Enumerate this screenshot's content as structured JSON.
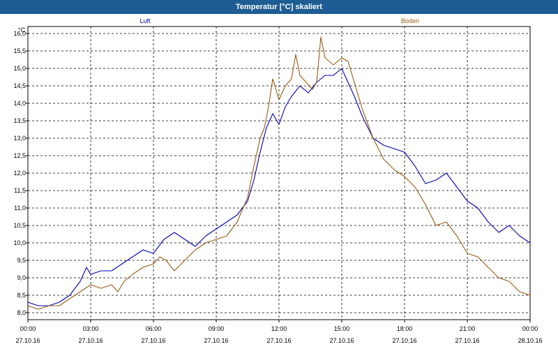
{
  "window": {
    "title": "Temperatur [°C] skaliert"
  },
  "colors": {
    "titlebar": "#1d5d93",
    "luft": "#0000b4",
    "boden": "#9a5a10",
    "grid": "#000000"
  },
  "chart_data": {
    "type": "line",
    "title": "Temperatur [°C] skaliert",
    "ylabel": "°C",
    "xlabel": "",
    "ylim": [
      7.8,
      16.2
    ],
    "xlim": [
      0,
      24
    ],
    "grid": true,
    "legend_placement": "top",
    "y_ticks": [
      "8,0",
      "8,5",
      "9,0",
      "9,5",
      "10,0",
      "10,5",
      "11,0",
      "11,5",
      "12,0",
      "12,5",
      "13,0",
      "13,5",
      "14,0",
      "14,5",
      "15,0",
      "15,5",
      "16,0"
    ],
    "y_tick_values": [
      8.0,
      8.5,
      9.0,
      9.5,
      10.0,
      10.5,
      11.0,
      11.5,
      12.0,
      12.5,
      13.0,
      13.5,
      14.0,
      14.5,
      15.0,
      15.5,
      16.0
    ],
    "x_ticks": [
      {
        "time": "00:00",
        "date": "27.10.16",
        "hour": 0
      },
      {
        "time": "03:00",
        "date": "27.10.16",
        "hour": 3
      },
      {
        "time": "06:00",
        "date": "27.10.16",
        "hour": 6
      },
      {
        "time": "09:00",
        "date": "27.10.16",
        "hour": 9
      },
      {
        "time": "12:00",
        "date": "27.10.16",
        "hour": 12
      },
      {
        "time": "15:00",
        "date": "27.10.16",
        "hour": 15
      },
      {
        "time": "18:00",
        "date": "27.10.16",
        "hour": 18
      },
      {
        "time": "21:00",
        "date": "27.10.16",
        "hour": 21
      },
      {
        "time": "00:00",
        "date": "28.10.16",
        "hour": 24
      }
    ],
    "series": [
      {
        "name": "Luft",
        "x": [
          0,
          0.5,
          1,
          1.5,
          2,
          2.5,
          2.8,
          3,
          3.5,
          4,
          4.5,
          5,
          5.5,
          6,
          6.5,
          7,
          7.5,
          8,
          8.5,
          9,
          9.5,
          10,
          10.5,
          10.8,
          11.1,
          11.4,
          11.7,
          12,
          12.3,
          12.6,
          13,
          13.4,
          13.8,
          14.2,
          14.6,
          15,
          15.3,
          15.6,
          16,
          16.5,
          17,
          17.5,
          18,
          18.5,
          19,
          19.5,
          20,
          20.5,
          21,
          21.5,
          22,
          22.5,
          23,
          23.5,
          24
        ],
        "values": [
          8.3,
          8.2,
          8.2,
          8.3,
          8.5,
          8.9,
          9.3,
          9.1,
          9.2,
          9.2,
          9.4,
          9.6,
          9.8,
          9.7,
          10.1,
          10.3,
          10.1,
          9.9,
          10.2,
          10.4,
          10.6,
          10.8,
          11.2,
          11.8,
          12.6,
          13.3,
          13.7,
          13.4,
          13.9,
          14.2,
          14.5,
          14.3,
          14.6,
          14.8,
          14.8,
          15.0,
          14.6,
          14.2,
          13.6,
          13.0,
          12.8,
          12.7,
          12.6,
          12.2,
          11.7,
          11.8,
          12.0,
          11.6,
          11.2,
          11.0,
          10.6,
          10.3,
          10.5,
          10.2,
          10.0
        ]
      },
      {
        "name": "Boden",
        "x": [
          0,
          0.5,
          1,
          1.5,
          2,
          2.5,
          3,
          3.5,
          4,
          4.3,
          4.6,
          5,
          5.5,
          6,
          6.3,
          6.6,
          7,
          7.5,
          8,
          8.5,
          9,
          9.5,
          10,
          10.5,
          10.8,
          11.1,
          11.3,
          11.5,
          11.7,
          12,
          12.3,
          12.6,
          12.8,
          13,
          13.3,
          13.6,
          13.8,
          14,
          14.2,
          14.4,
          14.6,
          15,
          15.3,
          15.6,
          16,
          16.5,
          17,
          17.5,
          18,
          18.5,
          19,
          19.5,
          20,
          20.5,
          21,
          21.5,
          22,
          22.5,
          23,
          23.5,
          24
        ],
        "values": [
          8.2,
          8.1,
          8.2,
          8.2,
          8.4,
          8.6,
          8.8,
          8.7,
          8.8,
          8.6,
          8.9,
          9.1,
          9.3,
          9.4,
          9.6,
          9.5,
          9.2,
          9.5,
          9.8,
          10.0,
          10.1,
          10.2,
          10.6,
          11.3,
          12.2,
          13.0,
          13.3,
          13.9,
          14.7,
          14.1,
          14.5,
          14.7,
          15.4,
          14.8,
          14.6,
          14.4,
          14.6,
          15.9,
          15.3,
          15.2,
          15.1,
          15.3,
          15.2,
          14.6,
          13.8,
          13.0,
          12.4,
          12.1,
          11.9,
          11.6,
          11.1,
          10.5,
          10.6,
          10.2,
          9.7,
          9.6,
          9.3,
          9.0,
          8.9,
          8.6,
          8.5
        ]
      }
    ]
  }
}
